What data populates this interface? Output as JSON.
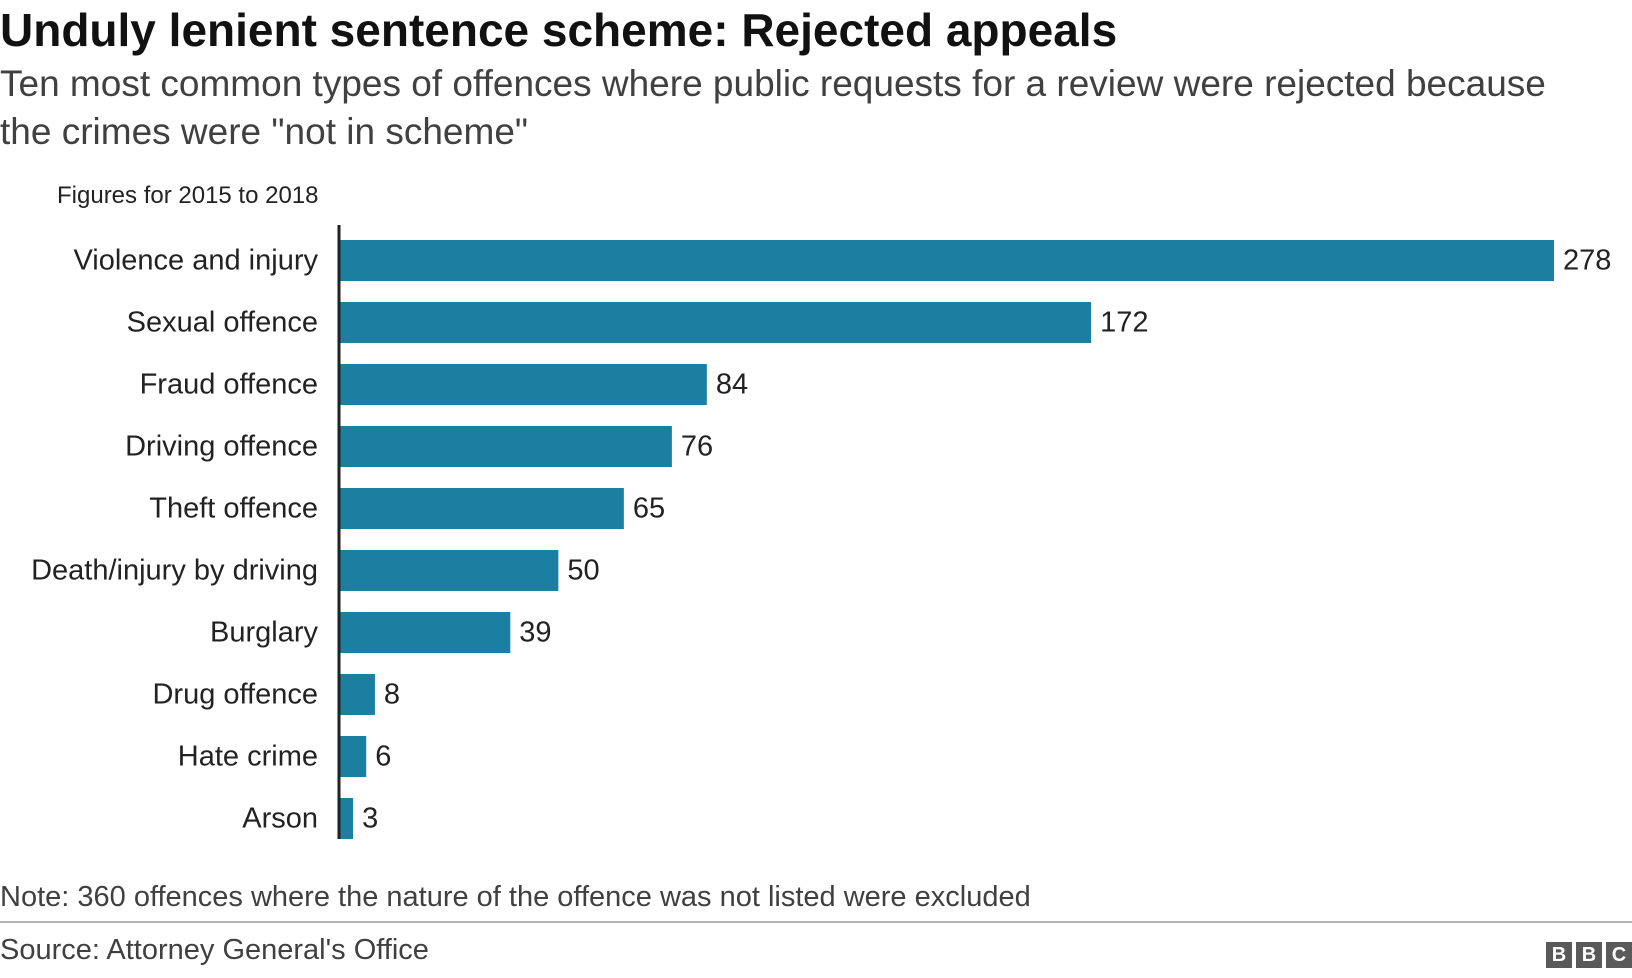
{
  "header": {
    "title": "Unduly lenient sentence scheme: Rejected appeals",
    "subtitle": "Ten most common types of offences where public requests for a review were rejected because the crimes were \"not in scheme\"",
    "period_note": "Figures for 2015 to 2018"
  },
  "footer": {
    "note": "Note: 360 offences where the nature of the offence was not listed were excluded",
    "source": "Source: Attorney General's Office",
    "logo_letters": [
      "B",
      "B",
      "C"
    ]
  },
  "colors": {
    "bar": "#1a7fa0",
    "axis": "#222222",
    "label": "#222222"
  },
  "chart_data": {
    "type": "bar",
    "orientation": "horizontal",
    "categories": [
      "Violence and injury",
      "Sexual offence",
      "Fraud offence",
      "Driving offence",
      "Theft offence",
      "Death/injury by driving",
      "Burglary",
      "Drug offence",
      "Hate crime",
      "Arson"
    ],
    "values": [
      278,
      172,
      84,
      76,
      65,
      50,
      39,
      8,
      6,
      3
    ],
    "xlim": [
      0,
      278
    ],
    "grid": false,
    "legend": "none",
    "data_labels": true
  }
}
